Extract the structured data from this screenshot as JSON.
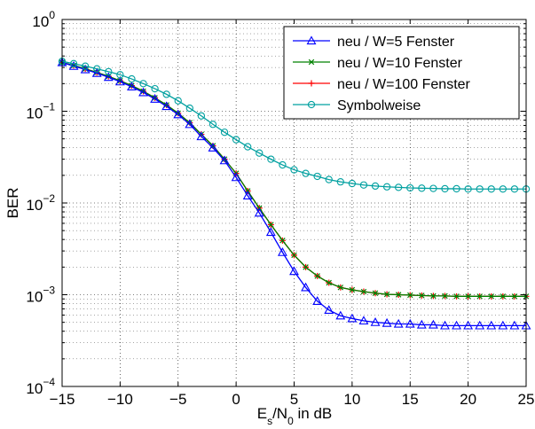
{
  "chart_data": {
    "type": "line",
    "xlabel": {
      "base": "E",
      "sub1": "s",
      "mid": "/N",
      "sub2": "0",
      "rest": " in dB"
    },
    "ylabel": "BER",
    "xlim": [
      -15,
      25
    ],
    "ylim": [
      0.0001,
      1
    ],
    "yscale": "log",
    "grid": true,
    "legend_position": "top-right",
    "x_ticks": [
      "−15",
      "−10",
      "−5",
      "0",
      "5",
      "10",
      "15",
      "20",
      "25"
    ],
    "y_ticks": [
      {
        "base": "10",
        "exp": "0"
      },
      {
        "base": "10",
        "exp": "−1"
      },
      {
        "base": "10",
        "exp": "−2"
      },
      {
        "base": "10",
        "exp": "−3"
      },
      {
        "base": "10",
        "exp": "−4"
      }
    ],
    "series": [
      {
        "name": "neu / W=5 Fenster",
        "color": "#0000ff",
        "marker": "triangle",
        "points": [
          [
            -15,
            0.34
          ],
          [
            -14,
            0.31
          ],
          [
            -13,
            0.285
          ],
          [
            -12,
            0.26
          ],
          [
            -11,
            0.235
          ],
          [
            -10,
            0.21
          ],
          [
            -9,
            0.185
          ],
          [
            -8,
            0.16
          ],
          [
            -7,
            0.136
          ],
          [
            -6,
            0.113
          ],
          [
            -5,
            0.092
          ],
          [
            -4,
            0.072
          ],
          [
            -3,
            0.053
          ],
          [
            -2,
            0.04
          ],
          [
            -1,
            0.029
          ],
          [
            0,
            0.019
          ],
          [
            1,
            0.012
          ],
          [
            2,
            0.0078
          ],
          [
            3,
            0.0048
          ],
          [
            4,
            0.0029
          ],
          [
            5,
            0.0018
          ],
          [
            6,
            0.0012
          ],
          [
            7,
            0.00085
          ],
          [
            8,
            0.00068
          ],
          [
            9,
            0.00059
          ],
          [
            10,
            0.00055
          ],
          [
            11,
            0.00052
          ],
          [
            12,
            0.0005
          ],
          [
            13,
            0.00049
          ],
          [
            14,
            0.00048
          ],
          [
            15,
            0.00048
          ],
          [
            16,
            0.00047
          ],
          [
            17,
            0.00047
          ],
          [
            18,
            0.00046
          ],
          [
            19,
            0.00046
          ],
          [
            20,
            0.00046
          ],
          [
            21,
            0.00046
          ],
          [
            22,
            0.00046
          ],
          [
            23,
            0.00046
          ],
          [
            24,
            0.00046
          ],
          [
            25,
            0.00046
          ]
        ]
      },
      {
        "name": "neu / W=10 Fenster",
        "color": "#008000",
        "marker": "x",
        "points": [
          [
            -15,
            0.34
          ],
          [
            -14,
            0.315
          ],
          [
            -13,
            0.29
          ],
          [
            -12,
            0.265
          ],
          [
            -11,
            0.24
          ],
          [
            -10,
            0.215
          ],
          [
            -9,
            0.19
          ],
          [
            -8,
            0.165
          ],
          [
            -7,
            0.14
          ],
          [
            -6,
            0.117
          ],
          [
            -5,
            0.095
          ],
          [
            -4,
            0.075
          ],
          [
            -3,
            0.056
          ],
          [
            -2,
            0.042
          ],
          [
            -1,
            0.03
          ],
          [
            0,
            0.021
          ],
          [
            1,
            0.0135
          ],
          [
            2,
            0.0088
          ],
          [
            3,
            0.0058
          ],
          [
            4,
            0.0039
          ],
          [
            5,
            0.0027
          ],
          [
            6,
            0.002
          ],
          [
            7,
            0.0016
          ],
          [
            8,
            0.00135
          ],
          [
            9,
            0.0012
          ],
          [
            10,
            0.00113
          ],
          [
            11,
            0.00108
          ],
          [
            12,
            0.00104
          ],
          [
            13,
            0.00101
          ],
          [
            14,
            0.001
          ],
          [
            15,
            0.00099
          ],
          [
            16,
            0.00098
          ],
          [
            17,
            0.00097
          ],
          [
            18,
            0.00097
          ],
          [
            19,
            0.00096
          ],
          [
            20,
            0.00096
          ],
          [
            21,
            0.00096
          ],
          [
            22,
            0.00096
          ],
          [
            23,
            0.00096
          ],
          [
            24,
            0.00096
          ],
          [
            25,
            0.00096
          ]
        ]
      },
      {
        "name": "neu / W=100 Fenster",
        "color": "#ff0000",
        "marker": "plus",
        "points": [
          [
            -15,
            0.34
          ],
          [
            -14,
            0.315
          ],
          [
            -13,
            0.29
          ],
          [
            -12,
            0.265
          ],
          [
            -11,
            0.24
          ],
          [
            -10,
            0.215
          ],
          [
            -9,
            0.19
          ],
          [
            -8,
            0.165
          ],
          [
            -7,
            0.14
          ],
          [
            -6,
            0.117
          ],
          [
            -5,
            0.095
          ],
          [
            -4,
            0.075
          ],
          [
            -3,
            0.056
          ],
          [
            -2,
            0.042
          ],
          [
            -1,
            0.03
          ],
          [
            0,
            0.021
          ],
          [
            1,
            0.0135
          ],
          [
            2,
            0.0088
          ],
          [
            3,
            0.0058
          ],
          [
            4,
            0.0039
          ],
          [
            5,
            0.0027
          ],
          [
            6,
            0.002
          ],
          [
            7,
            0.0016
          ],
          [
            8,
            0.00135
          ],
          [
            9,
            0.0012
          ],
          [
            10,
            0.00113
          ],
          [
            11,
            0.00108
          ],
          [
            12,
            0.00104
          ],
          [
            13,
            0.00101
          ],
          [
            14,
            0.001
          ],
          [
            15,
            0.00099
          ],
          [
            16,
            0.00098
          ],
          [
            17,
            0.00097
          ],
          [
            18,
            0.00097
          ],
          [
            19,
            0.00096
          ],
          [
            20,
            0.00096
          ],
          [
            21,
            0.00096
          ],
          [
            22,
            0.00096
          ],
          [
            23,
            0.00096
          ],
          [
            24,
            0.00096
          ],
          [
            25,
            0.00096
          ]
        ]
      },
      {
        "name": "Symbolweise",
        "color": "#00a0a0",
        "marker": "circle",
        "points": [
          [
            -15,
            0.35
          ],
          [
            -14,
            0.33
          ],
          [
            -13,
            0.31
          ],
          [
            -12,
            0.29
          ],
          [
            -11,
            0.27
          ],
          [
            -10,
            0.25
          ],
          [
            -9,
            0.225
          ],
          [
            -8,
            0.2
          ],
          [
            -7,
            0.176
          ],
          [
            -6,
            0.153
          ],
          [
            -5,
            0.13
          ],
          [
            -4,
            0.108
          ],
          [
            -3,
            0.089
          ],
          [
            -2,
            0.072
          ],
          [
            -1,
            0.059
          ],
          [
            0,
            0.049
          ],
          [
            1,
            0.041
          ],
          [
            2,
            0.035
          ],
          [
            3,
            0.03
          ],
          [
            4,
            0.026
          ],
          [
            5,
            0.023
          ],
          [
            6,
            0.021
          ],
          [
            7,
            0.0195
          ],
          [
            8,
            0.018
          ],
          [
            9,
            0.017
          ],
          [
            10,
            0.0163
          ],
          [
            11,
            0.0157
          ],
          [
            12,
            0.0153
          ],
          [
            13,
            0.015
          ],
          [
            14,
            0.0148
          ],
          [
            15,
            0.0146
          ],
          [
            16,
            0.0145
          ],
          [
            17,
            0.0144
          ],
          [
            18,
            0.0143
          ],
          [
            19,
            0.0143
          ],
          [
            20,
            0.0142
          ],
          [
            21,
            0.0142
          ],
          [
            22,
            0.0142
          ],
          [
            23,
            0.0142
          ],
          [
            24,
            0.0142
          ],
          [
            25,
            0.0142
          ]
        ]
      }
    ]
  }
}
